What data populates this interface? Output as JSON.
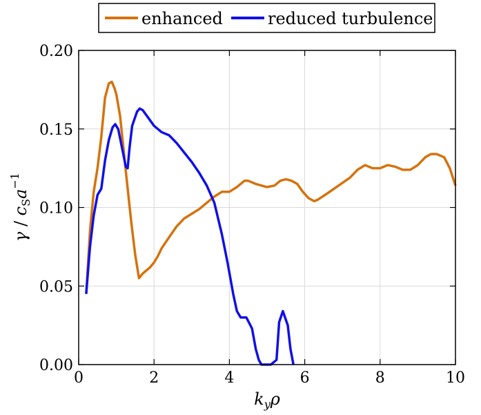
{
  "chart_data": {
    "type": "line",
    "xlabel": "k_yρ",
    "ylabel": "γ / c_S a^−1",
    "xlim": [
      0,
      10
    ],
    "ylim": [
      0,
      0.2
    ],
    "xticks": [
      0,
      2,
      4,
      6,
      8,
      10
    ],
    "yticks": [
      0.0,
      0.05,
      0.1,
      0.15,
      0.2
    ],
    "xtick_labels": [
      "0",
      "2",
      "4",
      "6",
      "8",
      "10"
    ],
    "ytick_labels": [
      "0.00",
      "0.05",
      "0.10",
      "0.15",
      "0.20"
    ],
    "grid": true,
    "legend_position": "top",
    "series": [
      {
        "name": "enhanced",
        "color": "#d4730e",
        "points": [
          [
            0.2,
            0.045
          ],
          [
            0.3,
            0.085
          ],
          [
            0.4,
            0.11
          ],
          [
            0.5,
            0.125
          ],
          [
            0.6,
            0.145
          ],
          [
            0.7,
            0.17
          ],
          [
            0.8,
            0.179
          ],
          [
            0.88,
            0.18
          ],
          [
            0.95,
            0.176
          ],
          [
            1.0,
            0.172
          ],
          [
            1.1,
            0.158
          ],
          [
            1.2,
            0.135
          ],
          [
            1.3,
            0.112
          ],
          [
            1.4,
            0.09
          ],
          [
            1.5,
            0.07
          ],
          [
            1.6,
            0.055
          ],
          [
            1.7,
            0.058
          ],
          [
            1.8,
            0.06
          ],
          [
            1.9,
            0.062
          ],
          [
            2.0,
            0.065
          ],
          [
            2.1,
            0.069
          ],
          [
            2.2,
            0.074
          ],
          [
            2.4,
            0.081
          ],
          [
            2.6,
            0.088
          ],
          [
            2.8,
            0.093
          ],
          [
            3.0,
            0.096
          ],
          [
            3.2,
            0.099
          ],
          [
            3.4,
            0.103
          ],
          [
            3.6,
            0.107
          ],
          [
            3.8,
            0.11
          ],
          [
            4.0,
            0.11
          ],
          [
            4.2,
            0.113
          ],
          [
            4.4,
            0.117
          ],
          [
            4.5,
            0.117
          ],
          [
            4.7,
            0.115
          ],
          [
            5.0,
            0.113
          ],
          [
            5.2,
            0.114
          ],
          [
            5.35,
            0.117
          ],
          [
            5.5,
            0.118
          ],
          [
            5.65,
            0.117
          ],
          [
            5.8,
            0.115
          ],
          [
            5.95,
            0.11
          ],
          [
            6.1,
            0.106
          ],
          [
            6.25,
            0.104
          ],
          [
            6.35,
            0.105
          ],
          [
            6.6,
            0.109
          ],
          [
            6.9,
            0.114
          ],
          [
            7.2,
            0.119
          ],
          [
            7.4,
            0.124
          ],
          [
            7.6,
            0.127
          ],
          [
            7.8,
            0.125
          ],
          [
            8.0,
            0.125
          ],
          [
            8.2,
            0.127
          ],
          [
            8.4,
            0.126
          ],
          [
            8.6,
            0.124
          ],
          [
            8.8,
            0.124
          ],
          [
            9.0,
            0.127
          ],
          [
            9.2,
            0.132
          ],
          [
            9.35,
            0.134
          ],
          [
            9.5,
            0.134
          ],
          [
            9.7,
            0.132
          ],
          [
            9.85,
            0.125
          ],
          [
            10.0,
            0.114
          ]
        ]
      },
      {
        "name": "reduced turbulence",
        "color": "#1010e8",
        "points": [
          [
            0.2,
            0.045
          ],
          [
            0.3,
            0.075
          ],
          [
            0.4,
            0.095
          ],
          [
            0.5,
            0.108
          ],
          [
            0.6,
            0.112
          ],
          [
            0.7,
            0.13
          ],
          [
            0.8,
            0.143
          ],
          [
            0.9,
            0.151
          ],
          [
            0.97,
            0.153
          ],
          [
            1.05,
            0.15
          ],
          [
            1.15,
            0.138
          ],
          [
            1.25,
            0.126
          ],
          [
            1.3,
            0.125
          ],
          [
            1.35,
            0.138
          ],
          [
            1.42,
            0.152
          ],
          [
            1.55,
            0.161
          ],
          [
            1.62,
            0.163
          ],
          [
            1.7,
            0.162
          ],
          [
            1.85,
            0.157
          ],
          [
            2.0,
            0.152
          ],
          [
            2.2,
            0.148
          ],
          [
            2.4,
            0.146
          ],
          [
            2.6,
            0.141
          ],
          [
            2.8,
            0.135
          ],
          [
            3.0,
            0.129
          ],
          [
            3.2,
            0.122
          ],
          [
            3.4,
            0.114
          ],
          [
            3.6,
            0.103
          ],
          [
            3.8,
            0.083
          ],
          [
            3.95,
            0.065
          ],
          [
            4.1,
            0.045
          ],
          [
            4.2,
            0.034
          ],
          [
            4.3,
            0.03
          ],
          [
            4.45,
            0.03
          ],
          [
            4.6,
            0.023
          ],
          [
            4.7,
            0.01
          ],
          [
            4.78,
            0.003
          ],
          [
            4.85,
            0.0
          ],
          [
            5.1,
            0.0
          ],
          [
            5.25,
            0.003
          ],
          [
            5.32,
            0.027
          ],
          [
            5.42,
            0.034
          ],
          [
            5.55,
            0.025
          ],
          [
            5.62,
            0.01
          ],
          [
            5.7,
            0.0
          ]
        ]
      }
    ]
  }
}
